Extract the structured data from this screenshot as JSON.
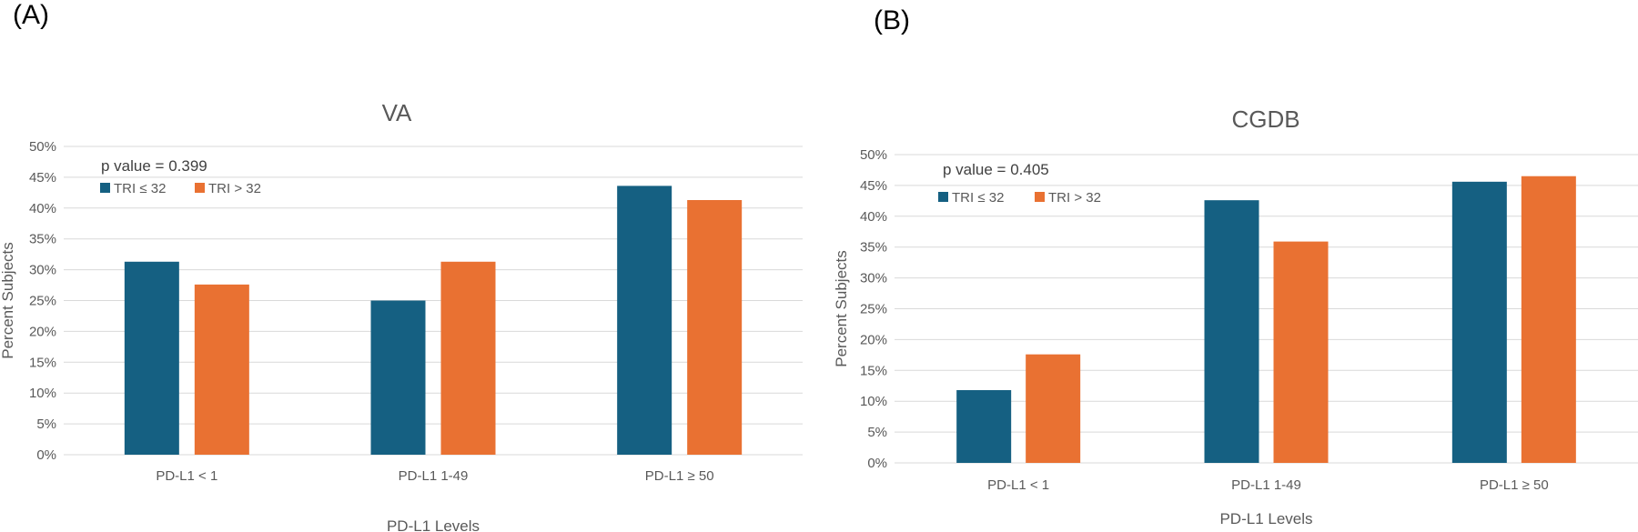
{
  "panel_labels": [
    "(A)",
    "(B)"
  ],
  "colors": {
    "series_1": "#156082",
    "series_2": "#E97132",
    "grid": "#d9d9d9",
    "text": "#595959"
  },
  "chart_data": [
    {
      "type": "bar",
      "panel": "(A)",
      "title": "VA",
      "annotation": "p value = 0.399",
      "xlabel": "PD-L1 Levels",
      "ylabel": "Percent Subjects",
      "categories": [
        "PD-L1 < 1",
        "PD-L1 1-49",
        "PD-L1 ≥ 50"
      ],
      "series": [
        {
          "name": "TRI ≤ 32",
          "values": [
            31.3,
            25.0,
            43.6
          ]
        },
        {
          "name": "TRI > 32",
          "values": [
            27.6,
            31.3,
            41.3
          ]
        }
      ],
      "ylim": [
        0,
        50
      ],
      "yticks": [
        "0%",
        "5%",
        "10%",
        "15%",
        "20%",
        "25%",
        "30%",
        "35%",
        "40%",
        "45%",
        "50%"
      ],
      "grid": true,
      "legend_position": "top-left"
    },
    {
      "type": "bar",
      "panel": "(B)",
      "title": "CGDB",
      "annotation": "p value = 0.405",
      "xlabel": "PD-L1 Levels",
      "ylabel": "Percent Subjects",
      "categories": [
        "PD-L1 < 1",
        "PD-L1 1-49",
        "PD-L1 ≥ 50"
      ],
      "series": [
        {
          "name": "TRI ≤ 32",
          "values": [
            11.8,
            42.6,
            45.6
          ]
        },
        {
          "name": "TRI > 32",
          "values": [
            17.6,
            35.9,
            46.5
          ]
        }
      ],
      "ylim": [
        0,
        50
      ],
      "yticks": [
        "0%",
        "5%",
        "10%",
        "15%",
        "20%",
        "25%",
        "30%",
        "35%",
        "40%",
        "45%",
        "50%"
      ],
      "grid": true,
      "legend_position": "top-left"
    }
  ]
}
